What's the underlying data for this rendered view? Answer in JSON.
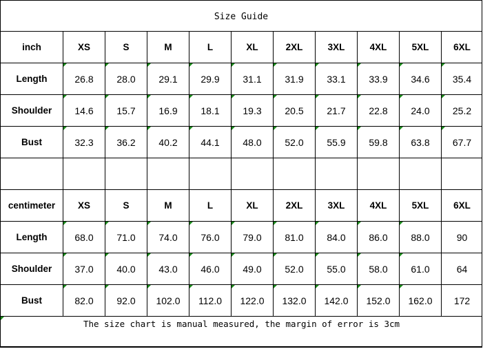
{
  "title": "Size Guide",
  "footer": "The size chart is manual measured, the margin of error is 3cm",
  "sizes": [
    "XS",
    "S",
    "M",
    "L",
    "XL",
    "2XL",
    "3XL",
    "4XL",
    "5XL",
    "6XL"
  ],
  "tables": [
    {
      "unit": "inch",
      "rows": [
        {
          "label": "Length",
          "values": [
            "26.8",
            "28.0",
            "29.1",
            "29.9",
            "31.1",
            "31.9",
            "33.1",
            "33.9",
            "34.6",
            "35.4"
          ]
        },
        {
          "label": "Shoulder",
          "values": [
            "14.6",
            "15.7",
            "16.9",
            "18.1",
            "19.3",
            "20.5",
            "21.7",
            "22.8",
            "24.0",
            "25.2"
          ]
        },
        {
          "label": "Bust",
          "values": [
            "32.3",
            "36.2",
            "40.2",
            "44.1",
            "48.0",
            "52.0",
            "55.9",
            "59.8",
            "63.8",
            "67.7"
          ]
        }
      ]
    },
    {
      "unit": "centimeter",
      "rows": [
        {
          "label": "Length",
          "values": [
            "68.0",
            "71.0",
            "74.0",
            "76.0",
            "79.0",
            "81.0",
            "84.0",
            "86.0",
            "88.0",
            "90"
          ]
        },
        {
          "label": "Shoulder",
          "values": [
            "37.0",
            "40.0",
            "43.0",
            "46.0",
            "49.0",
            "52.0",
            "55.0",
            "58.0",
            "61.0",
            "64"
          ]
        },
        {
          "label": "Bust",
          "values": [
            "82.0",
            "92.0",
            "102.0",
            "112.0",
            "122.0",
            "132.0",
            "142.0",
            "152.0",
            "162.0",
            "172"
          ]
        }
      ]
    }
  ],
  "colors": {
    "cell_marker": "#1a8a1a",
    "grid": "#000000"
  }
}
